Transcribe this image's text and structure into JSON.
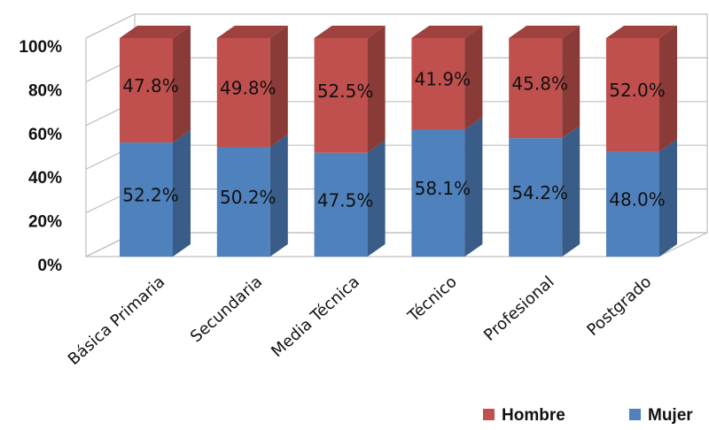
{
  "chart_data": {
    "type": "bar",
    "stacked": true,
    "percent_stacked": true,
    "three_d": true,
    "categories": [
      "Básica Primaria",
      "Secundaria",
      "Media Técnica",
      "Técnico",
      "Profesional",
      "Postgrado"
    ],
    "series": [
      {
        "name": "Mujer",
        "color": "#4f81bd",
        "values": [
          52.2,
          50.2,
          47.5,
          58.1,
          54.2,
          48.0
        ],
        "labels": [
          "52.2%",
          "50.2%",
          "47.5%",
          "58.1%",
          "54.2%",
          "48.0%"
        ]
      },
      {
        "name": "Hombre",
        "color": "#c0504d",
        "values": [
          47.8,
          49.8,
          52.5,
          41.9,
          45.8,
          52.0
        ],
        "labels": [
          "47.8%",
          "49.8%",
          "52.5%",
          "41.9%",
          "45.8%",
          "52.0%"
        ]
      }
    ],
    "y_ticks": [
      "0%",
      "20%",
      "40%",
      "60%",
      "80%",
      "100%"
    ],
    "ylim": [
      0,
      100
    ],
    "grid": true,
    "legend": {
      "position": "bottom-right",
      "order": [
        "Hombre",
        "Mujer"
      ]
    }
  }
}
